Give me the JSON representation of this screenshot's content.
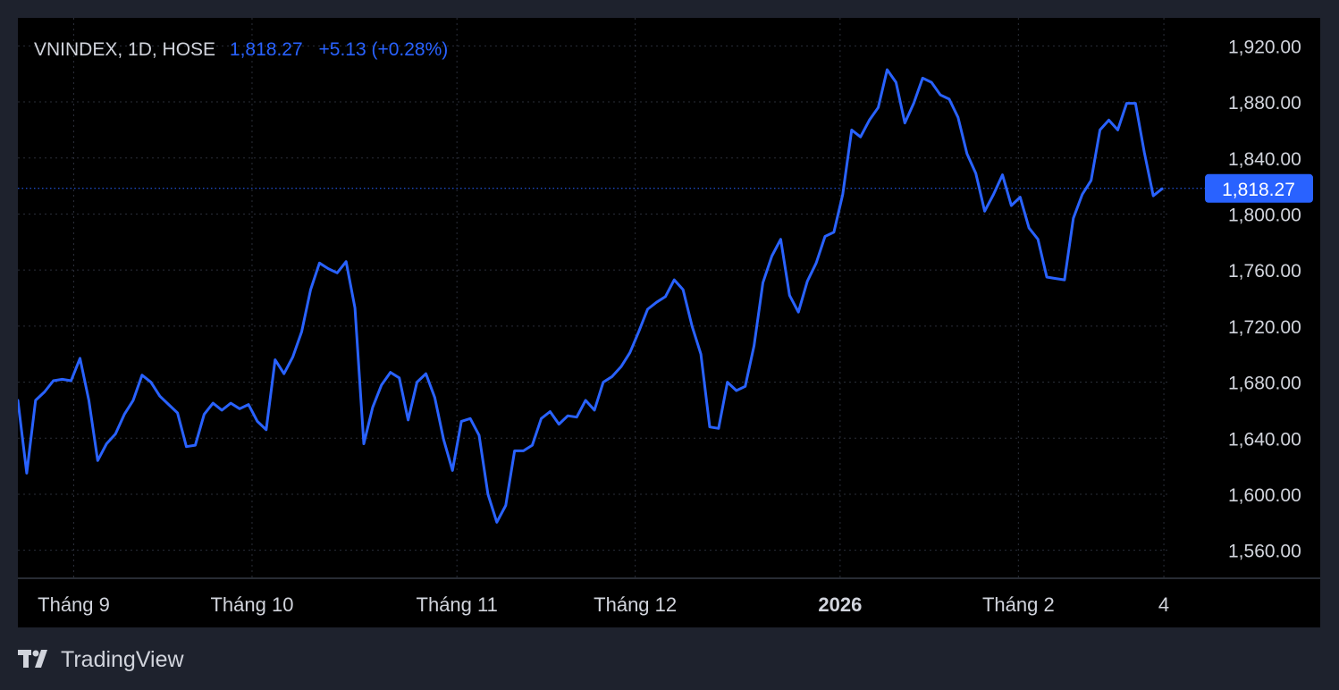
{
  "legend": {
    "symbol": "VNINDEX, 1D, HOSE",
    "last_price": "1,818.27",
    "change": "+5.13 (+0.28%)"
  },
  "brand": {
    "name": "TradingView",
    "icon": "tradingview-logo-icon"
  },
  "colors": {
    "background": "#000000",
    "page_background": "#1e222d",
    "line": "#2962ff",
    "grid": "#2a2e39",
    "text": "#d1d4dc",
    "label_badge": "#2962ff"
  },
  "chart_data": {
    "type": "line",
    "title": "",
    "xlabel": "",
    "ylabel": "",
    "ylim": [
      1540,
      1940
    ],
    "x_range": [
      0,
      130
    ],
    "grid": true,
    "last_value": 1818.27,
    "last_value_label": "1,818.27",
    "yticks": [
      1560,
      1600,
      1640,
      1680,
      1720,
      1760,
      1800,
      1840,
      1880,
      1920
    ],
    "ytick_labels": [
      "1,560.00",
      "1,600.00",
      "1,640.00",
      "1,680.00",
      "1,720.00",
      "1,760.00",
      "1,800.00",
      "1,840.00",
      "1,880.00",
      "1,920.00"
    ],
    "xticks": [
      {
        "x": 6.3,
        "label": "Tháng 9",
        "bold": false
      },
      {
        "x": 26.4,
        "label": "Tháng 10",
        "bold": false
      },
      {
        "x": 49.5,
        "label": "Tháng 11",
        "bold": false
      },
      {
        "x": 69.6,
        "label": "Tháng 12",
        "bold": false
      },
      {
        "x": 92.7,
        "label": "2026",
        "bold": true
      },
      {
        "x": 112.8,
        "label": "Tháng 2",
        "bold": false
      },
      {
        "x": 129.2,
        "label": "4",
        "bold": false
      }
    ],
    "series": [
      {
        "values": [
          1667,
          1615,
          1667,
          1673,
          1681,
          1682,
          1681,
          1697,
          1667,
          1624,
          1636,
          1643,
          1657,
          1667,
          1685,
          1680,
          1670,
          1664,
          1658,
          1634,
          1635,
          1657,
          1665,
          1660,
          1665,
          1661,
          1664,
          1652,
          1646,
          1696,
          1686,
          1698,
          1716,
          1746,
          1765,
          1761,
          1758,
          1766,
          1733,
          1636,
          1662,
          1678,
          1687,
          1683,
          1653,
          1680,
          1686,
          1669,
          1639,
          1617,
          1652,
          1654,
          1642,
          1600,
          1580,
          1592,
          1631,
          1631,
          1635,
          1654,
          1659,
          1650,
          1656,
          1655,
          1667,
          1660,
          1680,
          1684,
          1691,
          1701,
          1716,
          1732,
          1737,
          1741,
          1753,
          1746,
          1720,
          1700,
          1648,
          1647,
          1680,
          1674,
          1677,
          1706,
          1751,
          1770,
          1782,
          1742,
          1730,
          1752,
          1765,
          1784,
          1787,
          1814,
          1860,
          1855,
          1867,
          1876,
          1903,
          1894,
          1865,
          1879,
          1897,
          1894,
          1885,
          1882,
          1869,
          1843,
          1829,
          1802,
          1814,
          1828,
          1806,
          1812,
          1790,
          1782,
          1755,
          1754,
          1753,
          1797,
          1814,
          1824,
          1860,
          1867,
          1860,
          1879,
          1879,
          1844,
          1813,
          1818
        ]
      }
    ]
  }
}
